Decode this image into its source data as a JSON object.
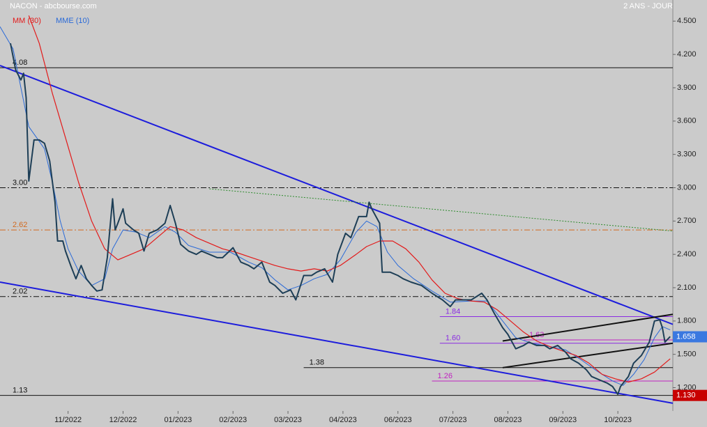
{
  "chart_data": {
    "type": "line",
    "title": "NACON - abcbourse.com",
    "subtitle": "2 ANS - JOUR",
    "xlim": [
      0,
      257
    ],
    "ylim": [
      0.99,
      4.69
    ],
    "xticks": [
      {
        "value": 26,
        "label": "11/2022"
      },
      {
        "value": 47,
        "label": "12/2022"
      },
      {
        "value": 68,
        "label": "01/2023"
      },
      {
        "value": 89,
        "label": "02/2023"
      },
      {
        "value": 110,
        "label": "03/2023"
      },
      {
        "value": 131,
        "label": "04/2023"
      },
      {
        "value": 152,
        "label": "06/2023"
      },
      {
        "value": 173,
        "label": "07/2023"
      },
      {
        "value": 194,
        "label": "08/2023"
      },
      {
        "value": 215,
        "label": "09/2023"
      },
      {
        "value": 236,
        "label": "10/2023"
      }
    ],
    "yticks": [
      {
        "value": 1.2,
        "label": "1.200"
      },
      {
        "value": 1.5,
        "label": "1.500"
      },
      {
        "value": 1.8,
        "label": "1.800"
      },
      {
        "value": 2.1,
        "label": "2.100"
      },
      {
        "value": 2.4,
        "label": "2.400"
      },
      {
        "value": 2.7,
        "label": "2.700"
      },
      {
        "value": 3.0,
        "label": "3.000"
      },
      {
        "value": 3.3,
        "label": "3.300"
      },
      {
        "value": 3.6,
        "label": "3.600"
      },
      {
        "value": 3.9,
        "label": "3.900"
      },
      {
        "value": 4.2,
        "label": "4.200"
      },
      {
        "value": 4.5,
        "label": "4.500"
      }
    ],
    "series": [
      {
        "name": "NACON",
        "color": "#1d3e56",
        "width": 2,
        "x": [
          4,
          6,
          8,
          9,
          10,
          11,
          13,
          15,
          17,
          19,
          21,
          22,
          24,
          25,
          27,
          28,
          29,
          31,
          32,
          33,
          35,
          37,
          39,
          41,
          43,
          44,
          45,
          47,
          48,
          51,
          53,
          55,
          57,
          60,
          63,
          65,
          67,
          69,
          72,
          75,
          77,
          80,
          83,
          85,
          89,
          92,
          95,
          97,
          100,
          103,
          105,
          108,
          111,
          113,
          116,
          119,
          121,
          124,
          127,
          129,
          132,
          134,
          137,
          140,
          141,
          142,
          145,
          146,
          149,
          152,
          154,
          157,
          161,
          165,
          169,
          172,
          174,
          177,
          180,
          184,
          186,
          189,
          192,
          194,
          197,
          200,
          202,
          205,
          208,
          210,
          213,
          216,
          218,
          221,
          224,
          226,
          229,
          232,
          234,
          236,
          237,
          240,
          242,
          245,
          248,
          250,
          252,
          253,
          254,
          256
        ],
        "values": [
          4.3,
          4.06,
          3.97,
          4.03,
          3.81,
          3.06,
          3.43,
          3.43,
          3.4,
          3.24,
          2.87,
          2.52,
          2.52,
          2.43,
          2.3,
          2.24,
          2.18,
          2.3,
          2.24,
          2.18,
          2.12,
          2.07,
          2.08,
          2.37,
          2.9,
          2.62,
          2.68,
          2.81,
          2.68,
          2.62,
          2.59,
          2.43,
          2.59,
          2.62,
          2.68,
          2.84,
          2.68,
          2.49,
          2.43,
          2.4,
          2.43,
          2.4,
          2.37,
          2.37,
          2.46,
          2.33,
          2.3,
          2.27,
          2.33,
          2.15,
          2.12,
          2.05,
          2.08,
          1.99,
          2.21,
          2.21,
          2.24,
          2.27,
          2.15,
          2.4,
          2.59,
          2.55,
          2.74,
          2.74,
          2.87,
          2.81,
          2.68,
          2.24,
          2.24,
          2.21,
          2.18,
          2.15,
          2.12,
          2.05,
          1.99,
          1.93,
          1.99,
          1.99,
          1.99,
          2.05,
          1.99,
          1.86,
          1.74,
          1.68,
          1.55,
          1.58,
          1.61,
          1.58,
          1.58,
          1.55,
          1.58,
          1.52,
          1.46,
          1.42,
          1.36,
          1.3,
          1.27,
          1.24,
          1.21,
          1.14,
          1.21,
          1.3,
          1.42,
          1.49,
          1.61,
          1.8,
          1.81,
          1.74,
          1.61,
          1.66
        ]
      },
      {
        "name": "MM (30)",
        "color": "#e31a1a",
        "width": 1.2,
        "x": [
          11,
          15,
          20,
          25,
          30,
          35,
          40,
          45,
          50,
          55,
          60,
          65,
          70,
          75,
          80,
          85,
          90,
          95,
          100,
          105,
          110,
          115,
          120,
          125,
          130,
          136,
          140,
          145,
          150,
          155,
          160,
          165,
          170,
          175,
          180,
          185,
          190,
          195,
          200,
          205,
          210,
          215,
          220,
          225,
          230,
          235,
          240,
          245,
          250,
          256
        ],
        "values": [
          4.55,
          4.3,
          3.85,
          3.45,
          3.05,
          2.7,
          2.45,
          2.35,
          2.4,
          2.45,
          2.55,
          2.65,
          2.62,
          2.55,
          2.5,
          2.45,
          2.42,
          2.38,
          2.34,
          2.3,
          2.27,
          2.25,
          2.27,
          2.25,
          2.3,
          2.4,
          2.47,
          2.52,
          2.52,
          2.45,
          2.33,
          2.17,
          2.05,
          2.0,
          1.98,
          1.97,
          1.9,
          1.8,
          1.7,
          1.62,
          1.57,
          1.53,
          1.49,
          1.42,
          1.32,
          1.28,
          1.25,
          1.28,
          1.34,
          1.46
        ]
      },
      {
        "name": "MME (10)",
        "color": "#2a6ad8",
        "width": 1,
        "x": [
          0,
          5,
          8,
          11,
          14,
          17,
          20,
          23,
          26,
          30,
          35,
          40,
          43,
          47,
          52,
          57,
          63,
          67,
          72,
          80,
          88,
          95,
          100,
          105,
          110,
          115,
          120,
          125,
          130,
          136,
          140,
          144,
          148,
          152,
          158,
          165,
          172,
          180,
          186,
          192,
          197,
          203,
          210,
          216,
          222,
          228,
          234,
          238,
          242,
          246,
          250,
          253,
          256
        ],
        "values": [
          4.45,
          4.25,
          3.9,
          3.55,
          3.45,
          3.35,
          3.05,
          2.7,
          2.45,
          2.25,
          2.12,
          2.18,
          2.45,
          2.62,
          2.6,
          2.55,
          2.65,
          2.6,
          2.48,
          2.42,
          2.42,
          2.33,
          2.28,
          2.17,
          2.08,
          2.12,
          2.18,
          2.22,
          2.35,
          2.6,
          2.7,
          2.65,
          2.42,
          2.3,
          2.18,
          2.07,
          1.97,
          1.98,
          1.98,
          1.8,
          1.65,
          1.6,
          1.57,
          1.54,
          1.45,
          1.35,
          1.26,
          1.22,
          1.32,
          1.45,
          1.65,
          1.75,
          1.72
        ]
      }
    ],
    "levels": [
      {
        "value": 4.08,
        "label": "4.08",
        "color": "#111",
        "dash": "",
        "x0": 0
      },
      {
        "value": 3.0,
        "label": "3.00",
        "color": "#111",
        "dash": "8 3 2 3",
        "x0": 0
      },
      {
        "value": 2.62,
        "label": "2.62",
        "color": "#d2691e",
        "dash": "8 3 2 3",
        "x0": 0
      },
      {
        "value": 2.02,
        "label": "2.02",
        "color": "#111",
        "dash": "8 3 2 3",
        "x0": 0
      },
      {
        "value": 1.84,
        "label": "1.84",
        "color": "#8a2be2",
        "dash": "",
        "x0": 168
      },
      {
        "value": 1.63,
        "label": "1.63",
        "color": "#c020c0",
        "dash": "",
        "x0": 200
      },
      {
        "value": 1.6,
        "label": "1.60",
        "color": "#8a2be2",
        "dash": "",
        "x0": 168
      },
      {
        "value": 1.38,
        "label": "1.38",
        "color": "#111",
        "dash": "",
        "x0": 116
      },
      {
        "value": 1.26,
        "label": "1.26",
        "color": "#c020c0",
        "dash": "",
        "x0": 165
      },
      {
        "value": 1.13,
        "label": "1.13",
        "color": "#111",
        "dash": "",
        "x0": 0
      }
    ],
    "trendlines": [
      {
        "x": [
          0,
          257
        ],
        "y": [
          4.1,
          1.77
        ],
        "color": "#1c1cdc",
        "width": 2,
        "dash": ""
      },
      {
        "x": [
          0,
          257
        ],
        "y": [
          2.15,
          1.06
        ],
        "color": "#1c1cdc",
        "width": 2,
        "dash": ""
      },
      {
        "x": [
          80,
          257
        ],
        "y": [
          2.99,
          2.61
        ],
        "color": "#2a8a2a",
        "width": 1,
        "dash": "2 2"
      },
      {
        "x": [
          192,
          257
        ],
        "y": [
          1.62,
          1.86
        ],
        "color": "#111",
        "width": 2,
        "dash": ""
      },
      {
        "x": [
          192,
          257
        ],
        "y": [
          1.38,
          1.6
        ],
        "color": "#111",
        "width": 2,
        "dash": ""
      }
    ],
    "price_tags": [
      {
        "value": 1.658,
        "label": "1.658",
        "color": "#3a78e0"
      },
      {
        "value": 1.13,
        "label": "1.130",
        "color": "#c80000"
      }
    ]
  }
}
